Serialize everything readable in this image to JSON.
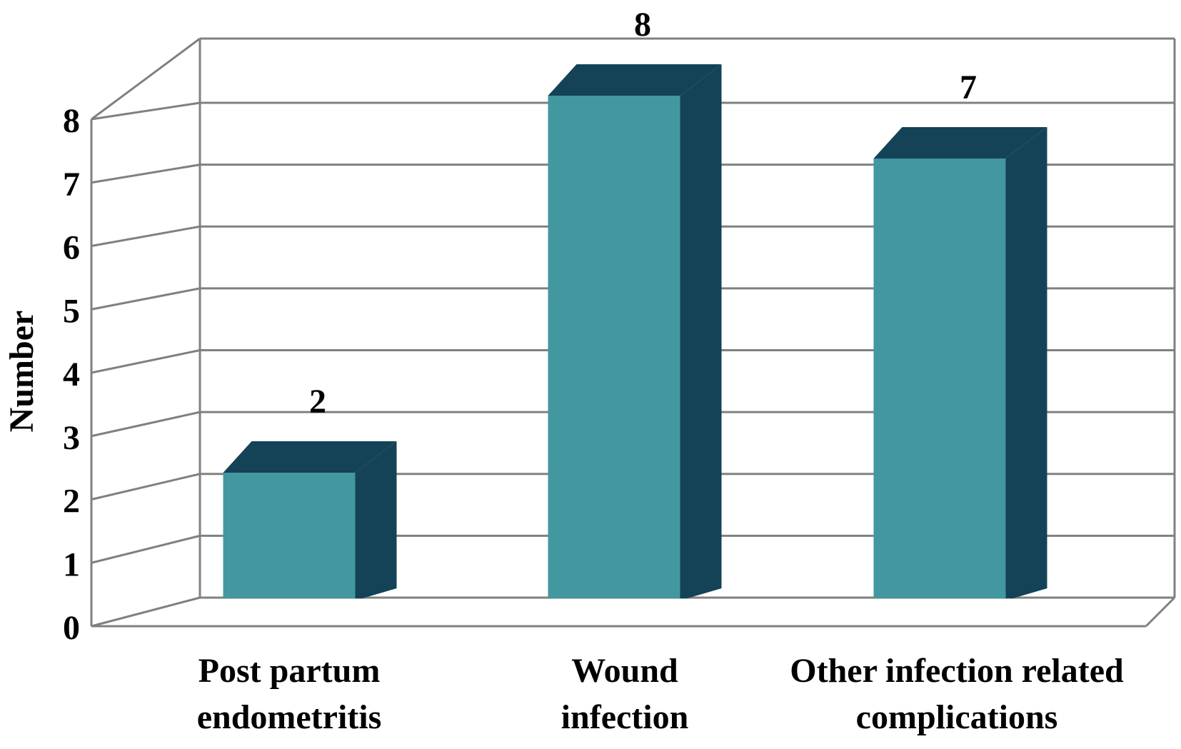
{
  "chart_data": {
    "type": "bar",
    "title": "",
    "xlabel": "",
    "ylabel": "Number",
    "ylim": [
      0,
      8
    ],
    "yticks": [
      "0",
      "1",
      "2",
      "3",
      "4",
      "5",
      "6",
      "7",
      "8"
    ],
    "grid": true,
    "categories": [
      [
        "Post partum",
        "endometritis"
      ],
      [
        "Wound",
        "infection"
      ],
      [
        "Other infection related",
        "complications"
      ]
    ],
    "values": [
      2,
      8,
      7
    ],
    "data_labels": [
      "2",
      "8",
      "7"
    ],
    "style": "3d",
    "colors": {
      "bar_front": "#4297a1",
      "bar_dark": "#144257",
      "grid": "#808080",
      "text": "#000000"
    }
  }
}
